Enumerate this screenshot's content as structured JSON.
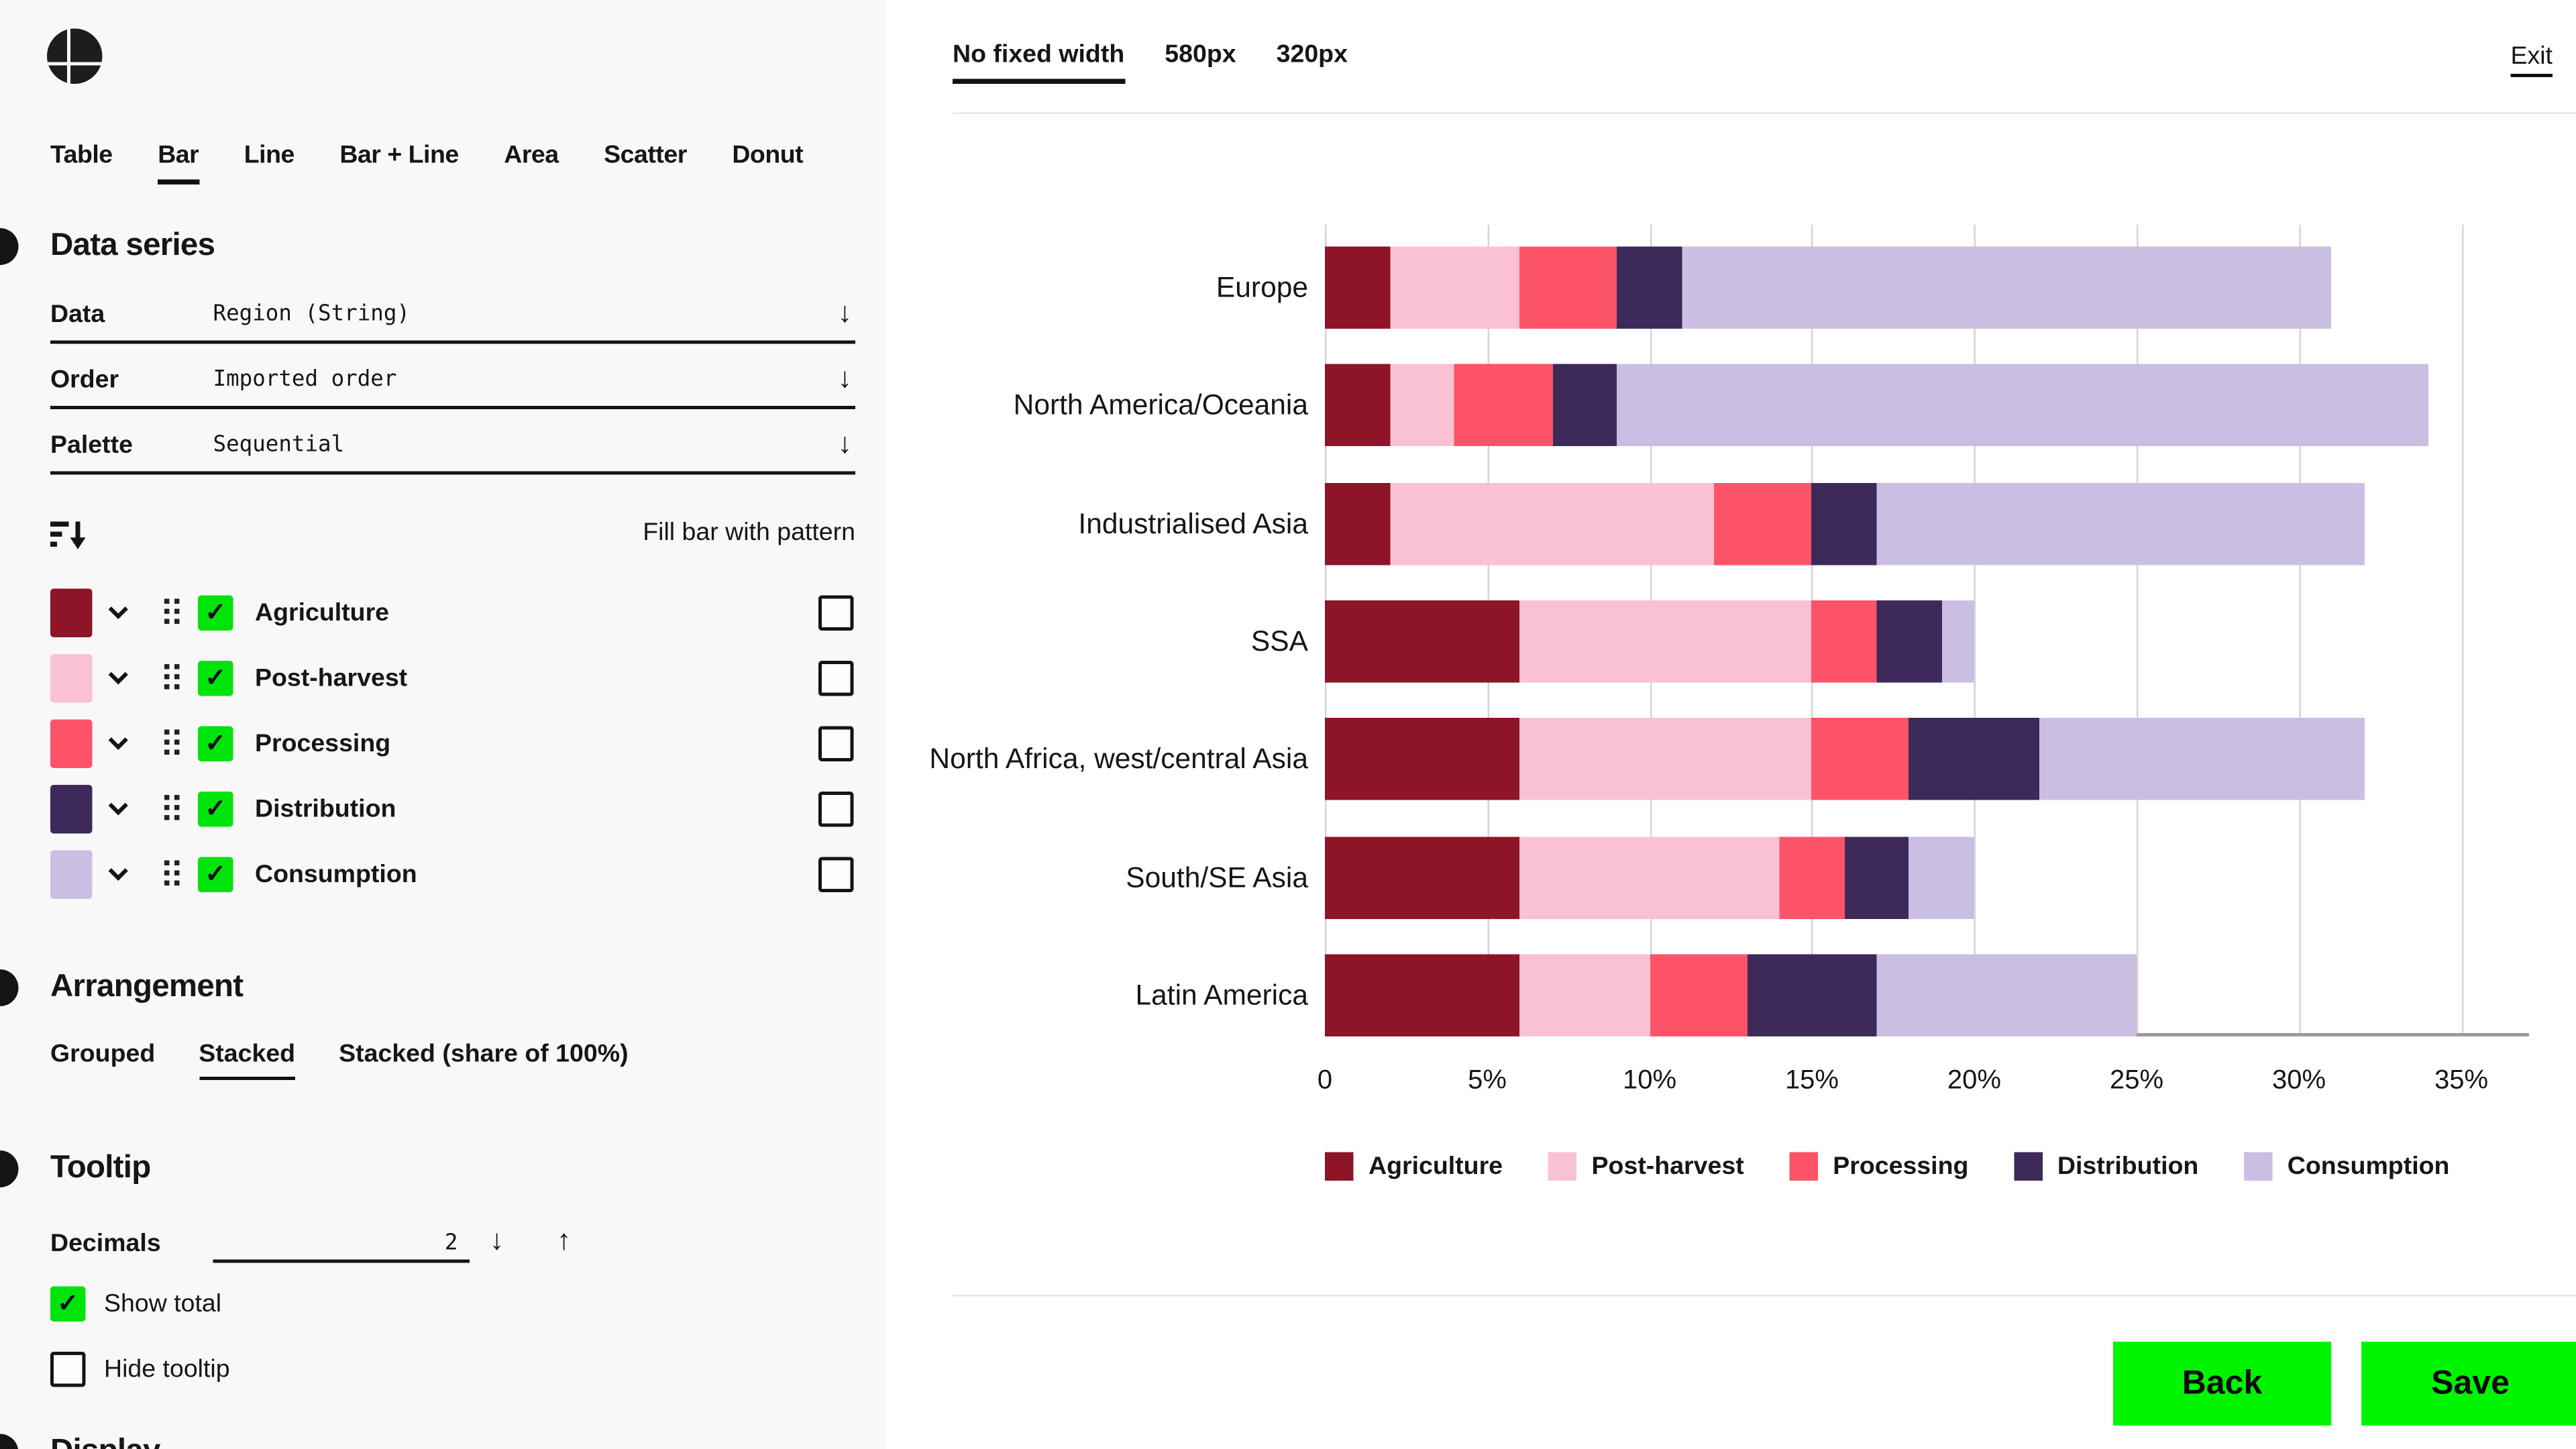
{
  "app": {
    "logo": "quadrant-circle-logo"
  },
  "topbar": {
    "width_options": [
      {
        "label": "No fixed width",
        "active": true
      },
      {
        "label": "580px",
        "active": false
      },
      {
        "label": "320px",
        "active": false
      }
    ],
    "exit_label": "Exit"
  },
  "sidebar": {
    "chart_type_tabs": [
      {
        "label": "Table",
        "active": false
      },
      {
        "label": "Bar",
        "active": true
      },
      {
        "label": "Line",
        "active": false
      },
      {
        "label": "Bar + Line",
        "active": false
      },
      {
        "label": "Area",
        "active": false
      },
      {
        "label": "Scatter",
        "active": false
      },
      {
        "label": "Donut",
        "active": false
      }
    ],
    "data_series": {
      "heading": "Data series",
      "fields": [
        {
          "label": "Data",
          "value": "Region (String)"
        },
        {
          "label": "Order",
          "value": "Imported order"
        },
        {
          "label": "Palette",
          "value": "Sequential"
        }
      ],
      "fill_pattern_label": "Fill bar with pattern",
      "series": [
        {
          "label": "Agriculture",
          "color": "#8e1528",
          "checked": true,
          "pattern_checked": false
        },
        {
          "label": "Post-harvest",
          "color": "#fac1d5",
          "checked": true,
          "pattern_checked": false
        },
        {
          "label": "Processing",
          "color": "#fd5368",
          "checked": true,
          "pattern_checked": false
        },
        {
          "label": "Distribution",
          "color": "#3d2a5a",
          "checked": true,
          "pattern_checked": false
        },
        {
          "label": "Consumption",
          "color": "#cbbee3",
          "checked": true,
          "pattern_checked": false
        }
      ]
    },
    "arrangement": {
      "heading": "Arrangement",
      "options": [
        {
          "label": "Grouped",
          "active": false
        },
        {
          "label": "Stacked",
          "active": true
        },
        {
          "label": "Stacked (share of 100%)",
          "active": false
        }
      ]
    },
    "tooltip": {
      "heading": "Tooltip",
      "decimals_label": "Decimals",
      "decimals_value": "2",
      "show_total": {
        "label": "Show total",
        "checked": true
      },
      "hide_tooltip": {
        "label": "Hide tooltip",
        "checked": false
      }
    },
    "display": {
      "heading": "Display"
    }
  },
  "footer": {
    "back_label": "Back",
    "save_label": "Save"
  },
  "colors": {
    "checkbox_green": "#00e40c",
    "button_green": "#00f400",
    "sidebar_bg": "#f8f8f8",
    "gridline": "#d4d4d4",
    "axis_line": "#9b9b9b",
    "divider": "#e4e4e4"
  },
  "chart_data": {
    "type": "bar",
    "orientation": "horizontal",
    "stacked": true,
    "title": "",
    "categories": [
      "Europe",
      "North America/Oceania",
      "Industrialised Asia",
      "SSA",
      "North Africa, west/central Asia",
      "South/SE Asia",
      "Latin America"
    ],
    "series": [
      {
        "name": "Agriculture",
        "color": "#8e1528",
        "values": [
          2,
          2,
          2,
          6,
          6,
          6,
          6
        ]
      },
      {
        "name": "Post-harvest",
        "color": "#fac1d5",
        "values": [
          4,
          2,
          10,
          9,
          9,
          8,
          4
        ]
      },
      {
        "name": "Processing",
        "color": "#fd5368",
        "values": [
          3,
          3,
          3,
          2,
          3,
          2,
          3
        ]
      },
      {
        "name": "Distribution",
        "color": "#3d2a5a",
        "values": [
          2,
          2,
          2,
          2,
          4,
          2,
          4
        ]
      },
      {
        "name": "Consumption",
        "color": "#cbbee3",
        "values": [
          20,
          25,
          15,
          1,
          10,
          2,
          8
        ]
      }
    ],
    "totals": [
      31,
      34,
      32,
      20,
      32,
      20,
      25
    ],
    "x_ticks": [
      "0",
      "5%",
      "10%",
      "15%",
      "20%",
      "25%",
      "30%",
      "35%"
    ],
    "xlim": [
      0,
      35
    ],
    "x_tick_step": 5,
    "grid": true,
    "legend_position": "bottom"
  }
}
